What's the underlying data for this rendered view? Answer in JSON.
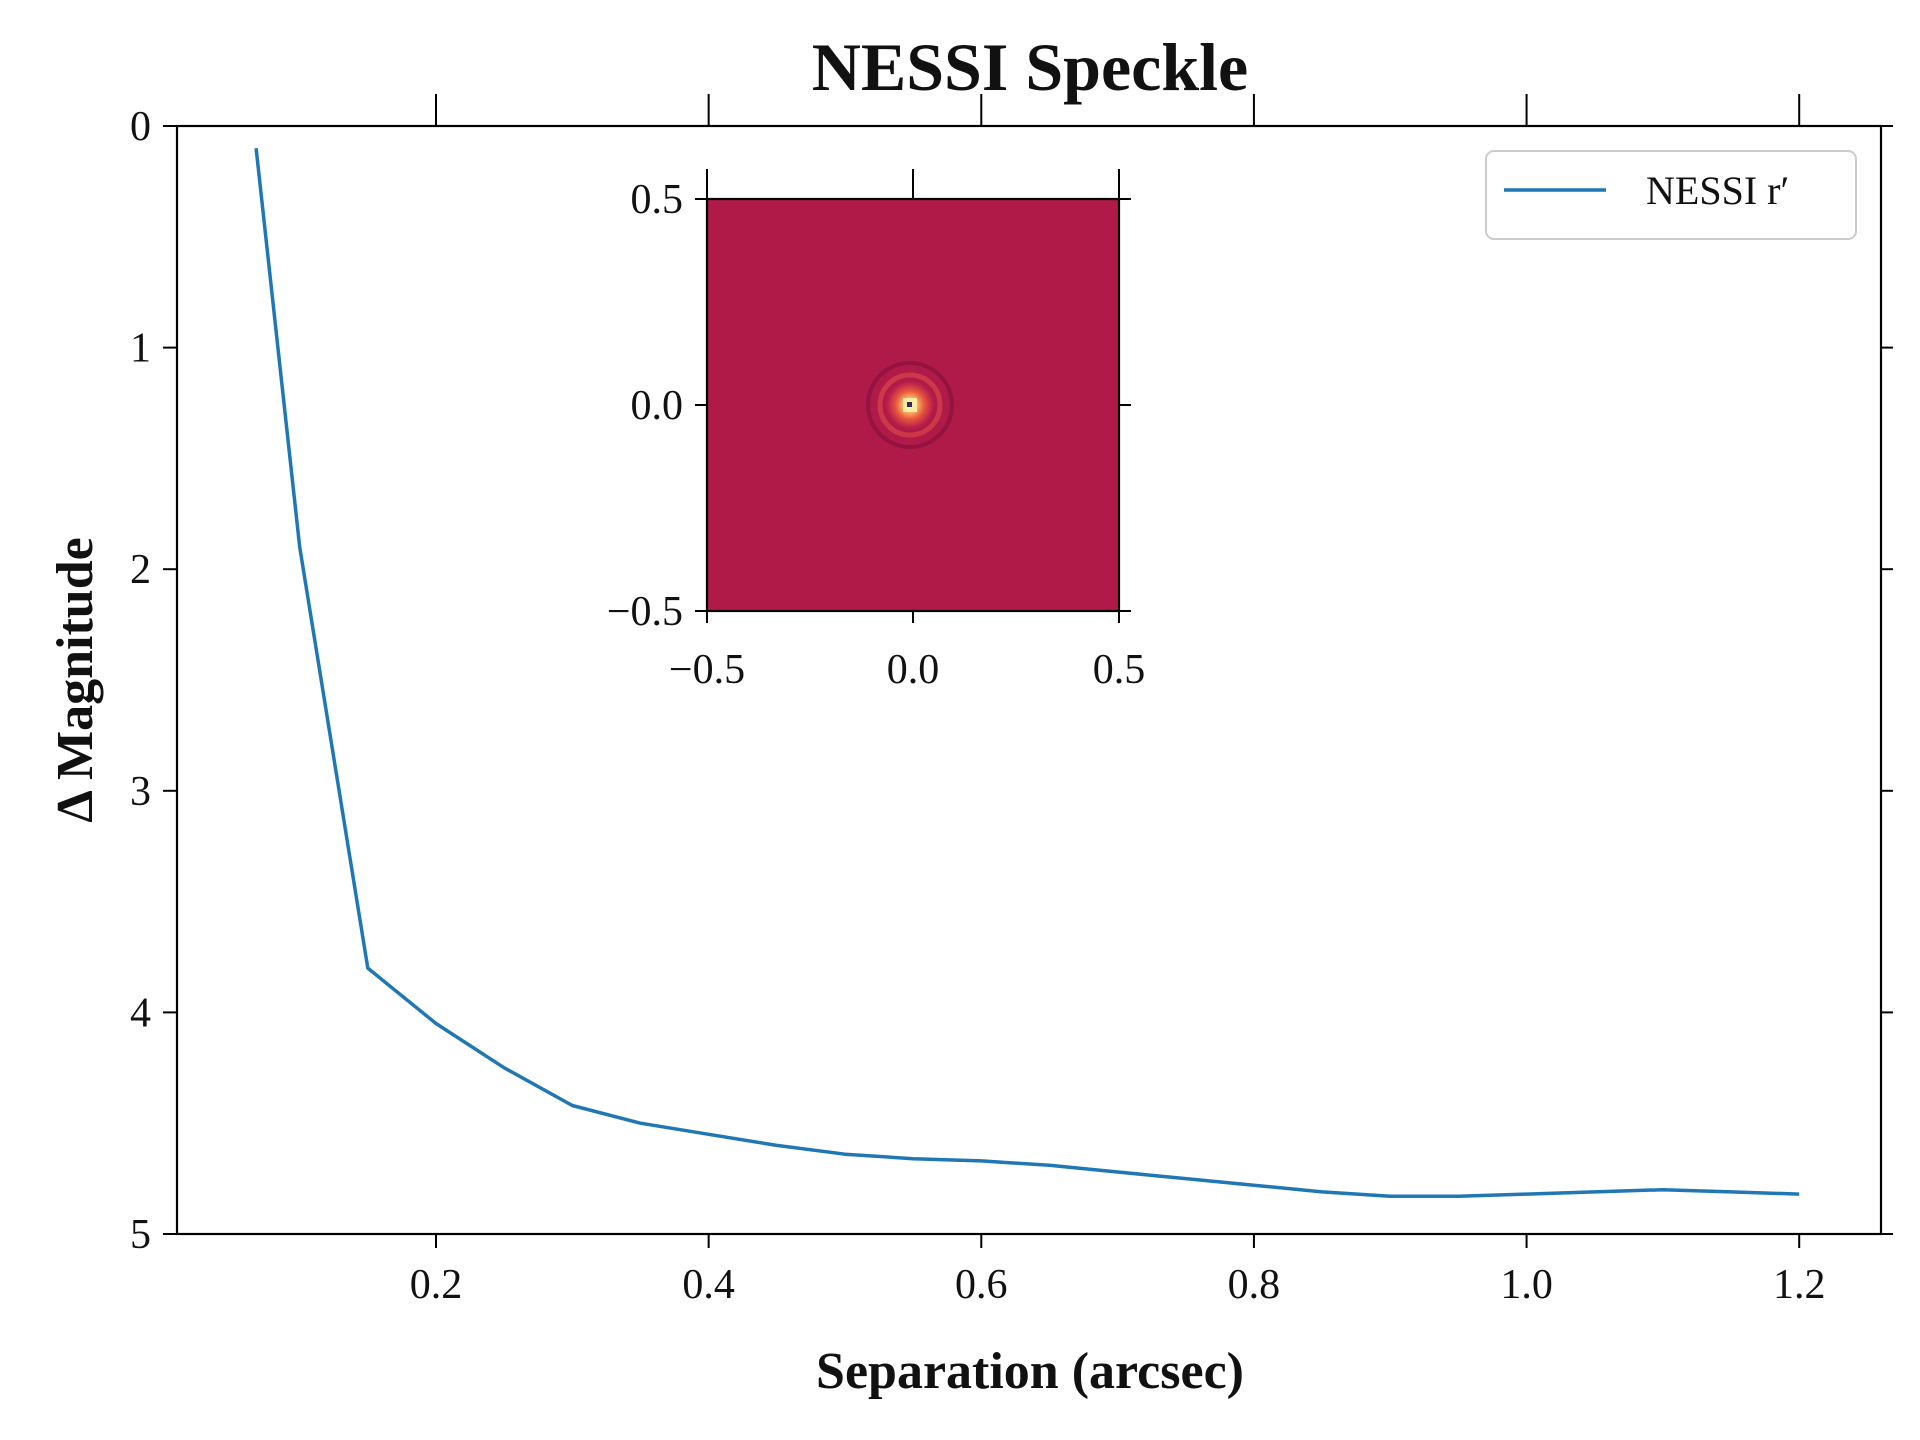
{
  "chart_data": {
    "type": "line",
    "title": "NESSI Speckle",
    "xlabel": "Separation (arcsec)",
    "ylabel": "Δ Magnitude",
    "xlim": [
      0.01,
      1.26
    ],
    "ylim": [
      5,
      0
    ],
    "y_inverted": true,
    "grid": false,
    "legend_position": "top-right",
    "x_ticks": [
      0.2,
      0.4,
      0.6,
      0.8,
      1.0,
      1.2
    ],
    "x_tick_labels": [
      "0.2",
      "0.4",
      "0.6",
      "0.8",
      "1.0",
      "1.2"
    ],
    "y_ticks": [
      0,
      1,
      2,
      3,
      4,
      5
    ],
    "y_tick_labels": [
      "0",
      "1",
      "2",
      "3",
      "4",
      "5"
    ],
    "series": [
      {
        "name": "NESSI r′",
        "color": "#1f77b4",
        "x": [
          0.068,
          0.1,
          0.15,
          0.2,
          0.25,
          0.3,
          0.35,
          0.4,
          0.45,
          0.5,
          0.55,
          0.6,
          0.65,
          0.7,
          0.75,
          0.8,
          0.85,
          0.9,
          0.95,
          1.0,
          1.05,
          1.1,
          1.15,
          1.2
        ],
        "y": [
          0.1,
          1.9,
          3.8,
          4.05,
          4.25,
          4.42,
          4.5,
          4.55,
          4.6,
          4.64,
          4.66,
          4.67,
          4.69,
          4.72,
          4.75,
          4.78,
          4.81,
          4.83,
          4.83,
          4.82,
          4.81,
          4.8,
          4.81,
          4.82
        ]
      }
    ],
    "inset": {
      "type": "heatmap",
      "description": "speckle image",
      "xlim": [
        -0.5,
        0.5
      ],
      "ylim": [
        -0.5,
        0.5
      ],
      "x_tick_labels": [
        "−0.5",
        "0.0",
        "0.5"
      ],
      "y_tick_labels": [
        "0.5",
        "0.0",
        "−0.5"
      ],
      "background_color": "#b01a48",
      "core_color": "#fbeea0",
      "ring_color": "#e6583a"
    }
  }
}
